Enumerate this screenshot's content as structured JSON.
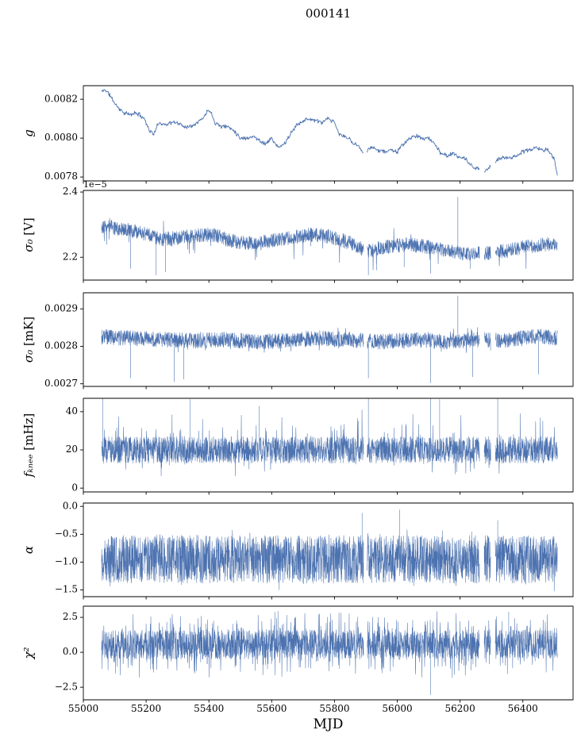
{
  "title": "000141",
  "xlabel": "MJD",
  "line_color": "#4c72b0",
  "axis_color": "#000000",
  "x_axis": {
    "min": 55000,
    "max": 56560,
    "ticks": [
      55000,
      55200,
      55400,
      55600,
      55800,
      56000,
      56200,
      56400
    ],
    "tick_labels": [
      "55000",
      "55200",
      "55400",
      "55600",
      "55800",
      "56000",
      "56200",
      "56400"
    ],
    "data_start": 55058,
    "data_end": 56510,
    "gaps": [
      [
        55893,
        55904
      ],
      [
        56262,
        56277
      ],
      [
        56298,
        56312
      ]
    ]
  },
  "chart_data": [
    {
      "name": "g",
      "type": "line",
      "ylabel_symbol": "g",
      "ylabel_unit": "",
      "ylim": [
        0.00778,
        0.00827
      ],
      "ytick_values": [
        0.0078,
        0.008,
        0.0082
      ],
      "ytick_labels": [
        "0.0078",
        "0.0080",
        "0.0082"
      ],
      "seed": 11,
      "n_points": 900,
      "line_width": 0.9,
      "noise": {
        "dist": "tri",
        "amp": 1.3e-05,
        "tails": []
      },
      "trend": [
        [
          55058,
          0.00824
        ],
        [
          55070,
          0.00825
        ],
        [
          55085,
          0.00822
        ],
        [
          55100,
          0.00818
        ],
        [
          55115,
          0.00815
        ],
        [
          55130,
          0.00813
        ],
        [
          55150,
          0.00812
        ],
        [
          55165,
          0.00813
        ],
        [
          55180,
          0.00812
        ],
        [
          55195,
          0.0081
        ],
        [
          55210,
          0.00804
        ],
        [
          55225,
          0.00802
        ],
        [
          55240,
          0.00808
        ],
        [
          55260,
          0.00807
        ],
        [
          55280,
          0.00808
        ],
        [
          55300,
          0.00808
        ],
        [
          55320,
          0.00806
        ],
        [
          55340,
          0.00806
        ],
        [
          55360,
          0.00808
        ],
        [
          55380,
          0.0081
        ],
        [
          55400,
          0.00815
        ],
        [
          55410,
          0.00812
        ],
        [
          55420,
          0.00808
        ],
        [
          55440,
          0.00806
        ],
        [
          55460,
          0.00806
        ],
        [
          55480,
          0.00804
        ],
        [
          55500,
          0.008
        ],
        [
          55520,
          0.008
        ],
        [
          55540,
          0.00801
        ],
        [
          55560,
          0.00799
        ],
        [
          55580,
          0.00797
        ],
        [
          55600,
          0.008
        ],
        [
          55620,
          0.00795
        ],
        [
          55640,
          0.00797
        ],
        [
          55660,
          0.00802
        ],
        [
          55680,
          0.00807
        ],
        [
          55700,
          0.00809
        ],
        [
          55720,
          0.0081
        ],
        [
          55740,
          0.00809
        ],
        [
          55760,
          0.00808
        ],
        [
          55780,
          0.0081
        ],
        [
          55800,
          0.00808
        ],
        [
          55815,
          0.00802
        ],
        [
          55830,
          0.00801
        ],
        [
          55845,
          0.008
        ],
        [
          55860,
          0.00797
        ],
        [
          55875,
          0.00797
        ],
        [
          55890,
          0.00792
        ],
        [
          55905,
          0.00794
        ],
        [
          55920,
          0.00795
        ],
        [
          55940,
          0.00794
        ],
        [
          55960,
          0.00793
        ],
        [
          55980,
          0.00794
        ],
        [
          56000,
          0.00793
        ],
        [
          56020,
          0.00797
        ],
        [
          56040,
          0.008
        ],
        [
          56060,
          0.00801
        ],
        [
          56080,
          0.008
        ],
        [
          56100,
          0.008
        ],
        [
          56120,
          0.00797
        ],
        [
          56140,
          0.00792
        ],
        [
          56160,
          0.00791
        ],
        [
          56180,
          0.00792
        ],
        [
          56200,
          0.0079
        ],
        [
          56220,
          0.00789
        ],
        [
          56240,
          0.00785
        ],
        [
          56260,
          0.00784
        ],
        [
          56280,
          0.00783
        ],
        [
          56300,
          0.00786
        ],
        [
          56320,
          0.00789
        ],
        [
          56340,
          0.0079
        ],
        [
          56360,
          0.0079
        ],
        [
          56380,
          0.00791
        ],
        [
          56400,
          0.00793
        ],
        [
          56420,
          0.00794
        ],
        [
          56440,
          0.00795
        ],
        [
          56460,
          0.00794
        ],
        [
          56480,
          0.00794
        ],
        [
          56500,
          0.00789
        ],
        [
          56510,
          0.00781
        ]
      ],
      "spikes": []
    },
    {
      "name": "sigma0_V",
      "type": "line",
      "ylabel_symbol": "σ₀",
      "ylabel_unit": " [V]",
      "offset_label": "1e−5",
      "ylim": [
        2.13,
        2.405
      ],
      "ytick_values": [
        2.2,
        2.4
      ],
      "ytick_labels": [
        "2.2",
        "2.4"
      ],
      "seed": 22,
      "n_points": 2200,
      "line_width": 0.6,
      "clamp": [
        2.135,
        2.4
      ],
      "noise": {
        "dist": "uniform",
        "amp": 0.022,
        "tails": [
          {
            "p": 0.012,
            "mag": 0.07,
            "sign": -1
          },
          {
            "p": 0.004,
            "mag": 0.05,
            "sign": 1
          }
        ]
      },
      "trend": [
        [
          55058,
          2.295
        ],
        [
          55080,
          2.3
        ],
        [
          55100,
          2.29
        ],
        [
          55130,
          2.285
        ],
        [
          55160,
          2.28
        ],
        [
          55200,
          2.27
        ],
        [
          55250,
          2.255
        ],
        [
          55300,
          2.26
        ],
        [
          55350,
          2.265
        ],
        [
          55400,
          2.27
        ],
        [
          55430,
          2.265
        ],
        [
          55470,
          2.25
        ],
        [
          55510,
          2.245
        ],
        [
          55550,
          2.24
        ],
        [
          55590,
          2.25
        ],
        [
          55630,
          2.255
        ],
        [
          55670,
          2.262
        ],
        [
          55710,
          2.268
        ],
        [
          55750,
          2.27
        ],
        [
          55790,
          2.262
        ],
        [
          55830,
          2.25
        ],
        [
          55860,
          2.24
        ],
        [
          55890,
          2.225
        ],
        [
          55910,
          2.22
        ],
        [
          55950,
          2.23
        ],
        [
          55990,
          2.235
        ],
        [
          56030,
          2.24
        ],
        [
          56070,
          2.235
        ],
        [
          56110,
          2.23
        ],
        [
          56150,
          2.222
        ],
        [
          56190,
          2.215
        ],
        [
          56230,
          2.21
        ],
        [
          56270,
          2.212
        ],
        [
          56310,
          2.215
        ],
        [
          56350,
          2.22
        ],
        [
          56390,
          2.228
        ],
        [
          56430,
          2.235
        ],
        [
          56470,
          2.24
        ],
        [
          56510,
          2.24
        ]
      ],
      "spikes": [
        [
          55150,
          2.165
        ],
        [
          55232,
          2.145
        ],
        [
          55262,
          2.155
        ],
        [
          55908,
          2.145
        ],
        [
          55934,
          2.16
        ],
        [
          56022,
          2.17
        ],
        [
          56106,
          2.15
        ],
        [
          56193,
          2.385
        ],
        [
          56232,
          2.165
        ]
      ]
    },
    {
      "name": "sigma0_mK",
      "type": "line",
      "ylabel_symbol": "σ₀",
      "ylabel_unit": " [mK]",
      "ylim": [
        0.002693,
        0.002943
      ],
      "ytick_values": [
        0.0027,
        0.0028,
        0.0029
      ],
      "ytick_labels": [
        "0.0027",
        "0.0028",
        "0.0029"
      ],
      "seed": 33,
      "n_points": 2200,
      "line_width": 0.6,
      "clamp": [
        0.002695,
        0.00294
      ],
      "noise": {
        "dist": "uniform",
        "amp": 2.05e-05,
        "tails": [
          {
            "p": 0.03,
            "mag": 2e-05,
            "sign": -1
          },
          {
            "p": 0.03,
            "mag": 1.8e-05,
            "sign": 1
          }
        ]
      },
      "trend": [
        [
          55058,
          0.002825
        ],
        [
          55150,
          0.002822
        ],
        [
          55250,
          0.002818
        ],
        [
          55350,
          0.002815
        ],
        [
          55450,
          0.002818
        ],
        [
          55550,
          0.002812
        ],
        [
          55650,
          0.002815
        ],
        [
          55750,
          0.002822
        ],
        [
          55850,
          0.002818
        ],
        [
          55950,
          0.002812
        ],
        [
          56050,
          0.002818
        ],
        [
          56150,
          0.002812
        ],
        [
          56250,
          0.002818
        ],
        [
          56350,
          0.002815
        ],
        [
          56430,
          0.002828
        ],
        [
          56510,
          0.002822
        ]
      ],
      "spikes": [
        [
          55150,
          0.002715
        ],
        [
          55290,
          0.002705
        ],
        [
          55320,
          0.002712
        ],
        [
          55908,
          0.002715
        ],
        [
          56106,
          0.002702
        ],
        [
          56193,
          0.002935
        ],
        [
          56240,
          0.002718
        ],
        [
          56450,
          0.002725
        ]
      ]
    },
    {
      "name": "f_knee",
      "type": "line",
      "ylabel_symbol": "fₖₙₑₑ",
      "ylabel_unit": " [mHz]",
      "ylim": [
        -2,
        47
      ],
      "ytick_values": [
        0,
        20,
        40
      ],
      "ytick_labels": [
        "0",
        "20",
        "40"
      ],
      "seed": 44,
      "n_points": 2600,
      "line_width": 0.55,
      "clamp": [
        5,
        46
      ],
      "noise": {
        "dist": "uniform",
        "amp": 7,
        "tails": [
          {
            "p": 0.06,
            "mag": 15,
            "sign": 1
          },
          {
            "p": 0.05,
            "mag": 7,
            "sign": -1
          }
        ]
      },
      "trend": [
        [
          55058,
          20
        ],
        [
          56510,
          20
        ]
      ],
      "spikes": [
        [
          55062,
          46.8
        ],
        [
          55340,
          46.5
        ],
        [
          55560,
          43
        ],
        [
          55908,
          46.8
        ],
        [
          56106,
          46.8
        ],
        [
          56135,
          46.5
        ],
        [
          56320,
          46.8
        ]
      ]
    },
    {
      "name": "alpha",
      "type": "line",
      "ylabel_symbol": "α",
      "ylabel_unit": "",
      "ylim": [
        -1.62,
        0.06
      ],
      "ytick_values": [
        -1.5,
        -1.0,
        -0.5,
        0.0
      ],
      "ytick_labels": [
        "−1.5",
        "−1.0",
        "−0.5",
        "0.0"
      ],
      "seed": 55,
      "n_points": 2600,
      "line_width": 0.55,
      "clamp": [
        -1.56,
        -0.3
      ],
      "noise": {
        "dist": "uniform",
        "amp": 0.43,
        "tails": [
          {
            "p": 0.06,
            "mag": 0.15,
            "sign": 0
          }
        ]
      },
      "trend": [
        [
          55058,
          -0.95
        ],
        [
          56510,
          -0.95
        ]
      ],
      "spikes": [
        [
          55888,
          -0.12
        ],
        [
          56008,
          -0.06
        ],
        [
          56320,
          -0.25
        ]
      ]
    },
    {
      "name": "chi2",
      "type": "line",
      "ylabel_symbol": "χ²",
      "ylabel_unit": "",
      "ylim": [
        -3.4,
        3.3
      ],
      "ytick_values": [
        -2.5,
        0.0,
        2.5
      ],
      "ytick_labels": [
        "−2.5",
        "0.0",
        "2.5"
      ],
      "seed": 66,
      "n_points": 2600,
      "line_width": 0.55,
      "clamp": [
        -2.95,
        3.05
      ],
      "noise": {
        "dist": "uniform",
        "amp": 1.05,
        "tails": [
          {
            "p": 0.3,
            "mag": 1.4,
            "sign": 0
          }
        ]
      },
      "trend": [
        [
          55058,
          0.55
        ],
        [
          56510,
          0.55
        ]
      ],
      "spikes": [
        [
          55620,
          2.95
        ],
        [
          56106,
          -3.05
        ],
        [
          56355,
          2.9
        ]
      ]
    }
  ]
}
